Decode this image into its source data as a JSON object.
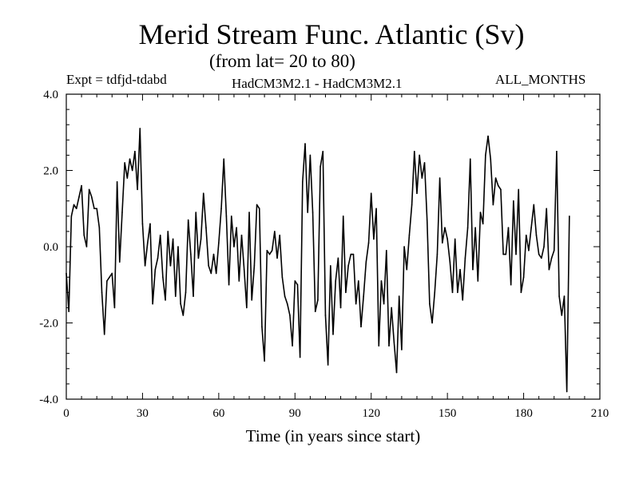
{
  "header": {
    "title": "Merid Stream Func. Atlantic (Sv)",
    "subtitle": "(from lat= 20 to 80)",
    "experiment": "Expt = tdfjd-tdabd",
    "models": "HadCM3M2.1 - HadCM3M2.1",
    "season": "ALL_MONTHS"
  },
  "chart_data": {
    "type": "line",
    "title": "Merid Stream Func. Atlantic (Sv)",
    "subtitle": "(from lat= 20 to 80)",
    "xlabel": "Time (in years since start)",
    "ylabel": "",
    "xlim": [
      0,
      210
    ],
    "ylim": [
      -4.0,
      4.0
    ],
    "x_ticks": [
      0,
      30,
      60,
      90,
      120,
      150,
      180,
      210
    ],
    "x_tick_labels": [
      "0",
      "30",
      "60",
      "90",
      "120",
      "150",
      "180",
      "210"
    ],
    "y_ticks": [
      4.0,
      2.0,
      0.0,
      -2.0,
      -4.0
    ],
    "y_tick_labels": [
      "4.0",
      "2.0",
      "0.0",
      "-2.0",
      "-4.0"
    ],
    "grid": false,
    "series": [
      {
        "name": "tdfjd-tdabd",
        "x_start": 0,
        "x_step": 1,
        "values": [
          -0.7,
          -1.7,
          0.8,
          1.1,
          1.0,
          1.3,
          1.6,
          0.3,
          0.0,
          1.5,
          1.3,
          1.0,
          1.0,
          0.5,
          -1.2,
          -2.3,
          -0.9,
          -0.8,
          -0.7,
          -1.6,
          1.7,
          -0.4,
          0.9,
          2.2,
          1.8,
          2.3,
          2.0,
          2.5,
          1.5,
          3.1,
          0.6,
          -0.5,
          0.1,
          0.6,
          -1.5,
          -0.6,
          -0.3,
          0.3,
          -0.8,
          -1.4,
          0.4,
          -0.5,
          0.2,
          -1.3,
          0.0,
          -1.5,
          -1.8,
          -1.2,
          0.7,
          -0.2,
          -1.3,
          0.9,
          -0.3,
          0.2,
          1.4,
          0.5,
          -0.5,
          -0.7,
          -0.2,
          -0.7,
          0.1,
          1.0,
          2.3,
          0.8,
          -1.0,
          0.8,
          0.0,
          0.5,
          -0.9,
          0.3,
          -0.6,
          -1.6,
          0.9,
          -1.4,
          -0.5,
          1.1,
          1.0,
          -2.1,
          -3.0,
          -0.1,
          -0.2,
          -0.1,
          0.4,
          -0.3,
          0.3,
          -0.8,
          -1.3,
          -1.5,
          -1.8,
          -2.6,
          -0.9,
          -1.0,
          -2.9,
          1.7,
          2.7,
          0.9,
          2.4,
          0.9,
          -1.7,
          -1.4,
          2.1,
          2.5,
          -1.8,
          -3.1,
          -0.5,
          -2.3,
          -0.9,
          -0.3,
          -1.6,
          0.8,
          -1.2,
          -0.5,
          -0.2,
          -0.2,
          -1.5,
          -0.9,
          -2.1,
          -1.3,
          -0.4,
          0.1,
          1.4,
          0.2,
          1.0,
          -2.6,
          -0.9,
          -1.5,
          -0.1,
          -2.6,
          -1.6,
          -2.5,
          -3.3,
          -1.3,
          -2.7,
          0.0,
          -0.6,
          0.3,
          1.1,
          2.5,
          1.4,
          2.4,
          1.8,
          2.2,
          0.7,
          -1.5,
          -2.0,
          -1.2,
          -0.2,
          1.8,
          0.1,
          0.5,
          0.2,
          -0.4,
          -1.2,
          0.2,
          -1.2,
          -0.6,
          -1.4,
          -0.3,
          0.5,
          2.3,
          -0.6,
          0.5,
          -0.9,
          0.9,
          0.6,
          2.4,
          2.9,
          2.3,
          1.1,
          1.8,
          1.6,
          1.5,
          -0.2,
          -0.2,
          0.5,
          -1.0,
          1.2,
          -0.2,
          1.5,
          -1.2,
          -0.8,
          0.3,
          -0.1,
          0.5,
          1.1,
          0.3,
          -0.2,
          -0.3,
          0.0,
          1.0,
          -0.6,
          -0.3,
          -0.1,
          2.5,
          -1.3,
          -1.8,
          -1.3,
          -3.8,
          0.8
        ]
      }
    ]
  }
}
